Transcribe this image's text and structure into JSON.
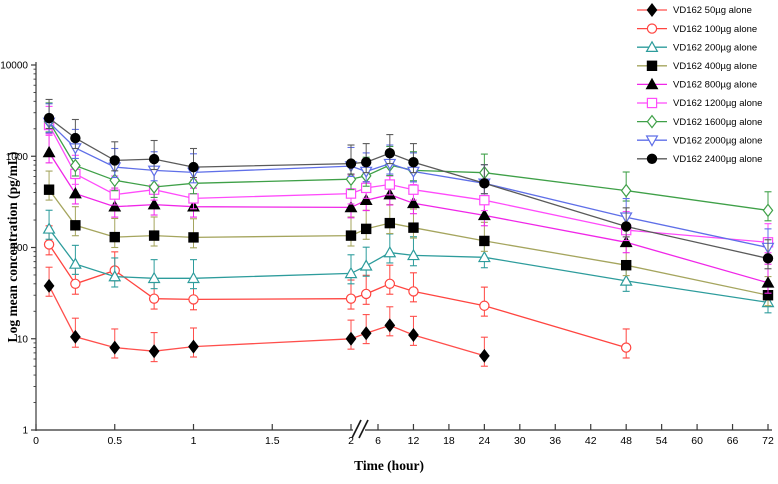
{
  "figure": {
    "xlabel": "Time (hour)",
    "ylabel": "Log mean concentration (pg/mL)"
  },
  "chart_data": {
    "type": "line",
    "title": "",
    "xlabel": "Time (hour)",
    "ylabel": "Log mean concentration (pg/mL)",
    "y_scale": "log",
    "ylim": [
      1,
      10000
    ],
    "y_ticks": [
      1,
      10,
      100,
      1000,
      10000
    ],
    "y_tick_labels": [
      "1",
      "10",
      "100",
      "1000",
      "10000"
    ],
    "x_axis_break_between": [
      2,
      6
    ],
    "x_ticks_linear_segment": [
      0,
      0.5,
      1,
      1.5,
      2
    ],
    "x_tick_labels_linear": [
      "0",
      "0.5",
      "1",
      "1.5",
      "2"
    ],
    "x_ticks_broken_segment": [
      6,
      12,
      18,
      24,
      30,
      36,
      42,
      48,
      54,
      60,
      66,
      72
    ],
    "x_tick_labels_broken": [
      "6",
      "12",
      "18",
      "24",
      "30",
      "36",
      "42",
      "48",
      "54",
      "60",
      "66",
      "72"
    ],
    "grid": false,
    "legend_position": "top-right",
    "error_bars": {
      "up_factor": 1.6,
      "down_factor": 1.3
    },
    "x": [
      0.083,
      0.25,
      0.5,
      0.75,
      1,
      2,
      4,
      8,
      12,
      24,
      48,
      72
    ],
    "series": [
      {
        "name": "VD162 50µg alone",
        "marker": "diamond-filled",
        "marker_color": "#000000",
        "line_color": "#ff4f4c",
        "values": [
          38,
          10.5,
          8,
          7.3,
          8.2,
          10,
          11.5,
          14,
          11,
          6.5,
          null,
          null
        ]
      },
      {
        "name": "VD162 100µg alone",
        "marker": "circle-open",
        "marker_color": "#ff4540",
        "line_color": "#ff4540",
        "values": [
          108,
          40,
          56,
          27.5,
          27,
          27.5,
          31,
          40,
          33,
          23,
          8,
          null
        ]
      },
      {
        "name": "VD162 200µg alone",
        "marker": "triangle-up-open",
        "marker_color": "#2d9c9c",
        "line_color": "#2d9c9c",
        "values": [
          160,
          66,
          48,
          46,
          46,
          52,
          63,
          88,
          82,
          78,
          43,
          25
        ]
      },
      {
        "name": "VD162 400µg alone",
        "marker": "square-filled",
        "marker_color": "#000000",
        "line_color": "#a5a55e",
        "values": [
          430,
          175,
          130,
          135,
          129,
          135,
          160,
          185,
          165,
          118,
          64,
          30
        ]
      },
      {
        "name": "VD162 800µg alone",
        "marker": "triangle-up-filled",
        "marker_color": "#000000",
        "line_color": "#f026e8",
        "values": [
          1100,
          390,
          280,
          295,
          280,
          275,
          330,
          380,
          305,
          225,
          114,
          41
        ]
      },
      {
        "name": "VD162 1200µg alone",
        "marker": "square-open",
        "marker_color": "#ff4bfb",
        "line_color": "#ff4bfb",
        "values": [
          2200,
          640,
          380,
          430,
          345,
          390,
          450,
          490,
          430,
          330,
          155,
          114
        ]
      },
      {
        "name": "VD162 1600µg alone",
        "marker": "diamond-open",
        "marker_color": "#3fa048",
        "line_color": "#3fa048",
        "values": [
          2400,
          790,
          545,
          460,
          505,
          560,
          610,
          800,
          700,
          660,
          420,
          255
        ]
      },
      {
        "name": "VD162 2000µg alone",
        "marker": "triangle-down-open",
        "marker_color": "#5f6fe8",
        "line_color": "#5f6fe8",
        "values": [
          2350,
          1230,
          760,
          700,
          665,
          780,
          680,
          830,
          680,
          505,
          215,
          100
        ]
      },
      {
        "name": "VD162 2400µg alone",
        "marker": "circle-filled",
        "marker_color": "#000000",
        "line_color": "#5a5a5a",
        "values": [
          2620,
          1580,
          900,
          930,
          760,
          830,
          860,
          1080,
          860,
          505,
          170,
          76
        ]
      }
    ]
  }
}
